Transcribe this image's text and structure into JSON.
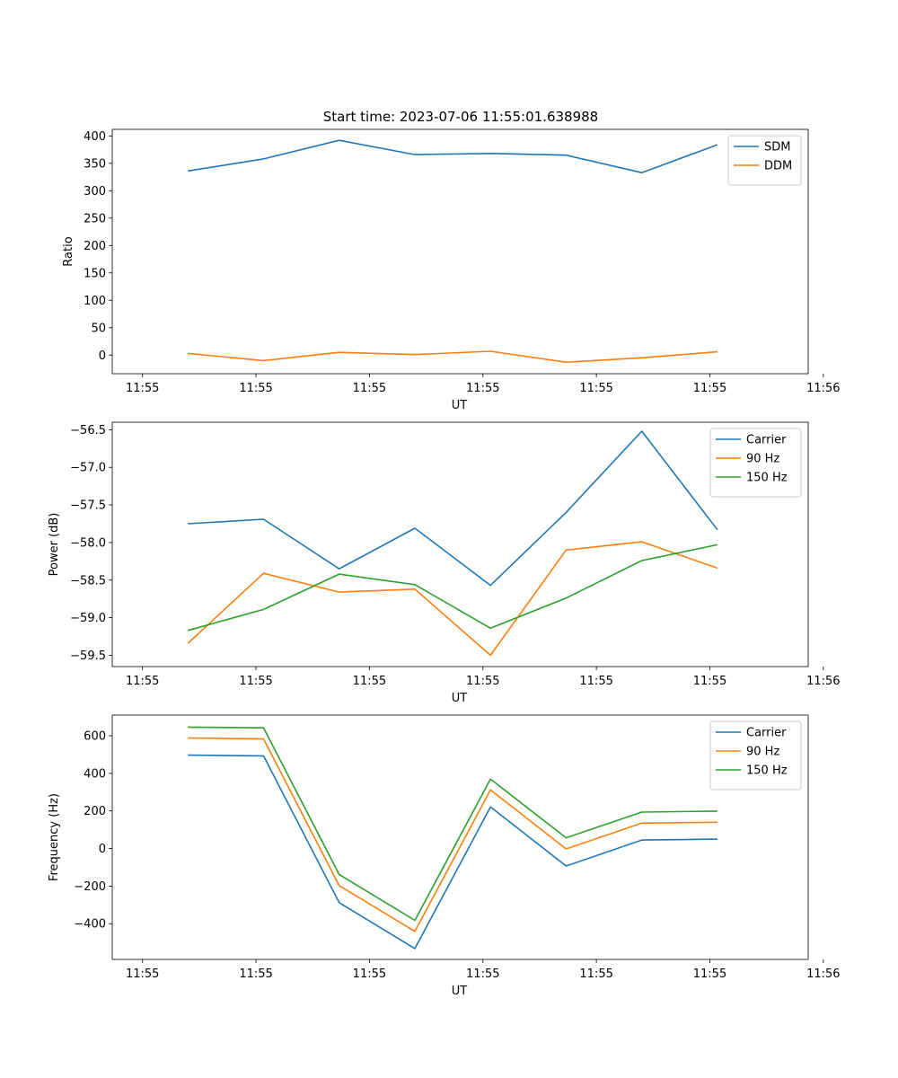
{
  "chart_data": [
    {
      "type": "line",
      "title": "Start time: 2023-07-06 11:55:01.638988",
      "xlabel": "UT",
      "ylabel": "Ratio",
      "xlim": [
        -0.4,
        8.8
      ],
      "ylim": [
        -34,
        412
      ],
      "x": [
        0.6,
        1.6,
        2.6,
        3.6,
        4.6,
        5.6,
        6.6,
        7.6
      ],
      "x_ticks": [
        0,
        1.5,
        3,
        4.5,
        6,
        7.5,
        9
      ],
      "x_tick_labels": [
        "11:55",
        "11:55",
        "11:55",
        "11:55",
        "11:55",
        "11:55",
        "11:56"
      ],
      "y_ticks": [
        0,
        50,
        100,
        150,
        200,
        250,
        300,
        350,
        400
      ],
      "y_tick_labels": [
        "0",
        "50",
        "100",
        "150",
        "200",
        "250",
        "300",
        "350",
        "400"
      ],
      "legend_position": "top-right",
      "series": [
        {
          "name": "SDM",
          "color": "#1f77b4",
          "values": [
            336,
            358,
            392,
            366,
            368,
            365,
            333,
            384
          ]
        },
        {
          "name": "DDM",
          "color": "#ff7f0e",
          "values": [
            3,
            -10,
            5,
            1,
            7,
            -13,
            -5,
            6
          ]
        }
      ]
    },
    {
      "type": "line",
      "title": "",
      "xlabel": "UT",
      "ylabel": "Power (dB)",
      "xlim": [
        -0.4,
        8.8
      ],
      "ylim": [
        -59.65,
        -56.4
      ],
      "x": [
        0.6,
        1.6,
        2.6,
        3.6,
        4.6,
        5.6,
        6.6,
        7.6
      ],
      "x_ticks": [
        0,
        1.5,
        3,
        4.5,
        6,
        7.5,
        9
      ],
      "x_tick_labels": [
        "11:55",
        "11:55",
        "11:55",
        "11:55",
        "11:55",
        "11:55",
        "11:56"
      ],
      "y_ticks": [
        -59.5,
        -59.0,
        -58.5,
        -58.0,
        -57.5,
        -57.0,
        -56.5
      ],
      "y_tick_labels": [
        "−59.5",
        "−59.0",
        "−58.5",
        "−58.0",
        "−57.5",
        "−57.0",
        "−56.5"
      ],
      "legend_position": "top-right",
      "series": [
        {
          "name": "Carrier",
          "color": "#1f77b4",
          "values": [
            -57.75,
            -57.69,
            -58.35,
            -57.81,
            -58.57,
            -57.6,
            -56.52,
            -57.83
          ]
        },
        {
          "name": "90 Hz",
          "color": "#ff7f0e",
          "values": [
            -59.34,
            -58.41,
            -58.66,
            -58.62,
            -59.5,
            -58.1,
            -57.99,
            -58.34
          ]
        },
        {
          "name": "150 Hz",
          "color": "#2ca02c",
          "values": [
            -59.17,
            -58.89,
            -58.42,
            -58.56,
            -59.14,
            -58.74,
            -58.24,
            -58.03
          ]
        }
      ]
    },
    {
      "type": "line",
      "title": "",
      "xlabel": "UT",
      "ylabel": "Frequency (Hz)",
      "xlim": [
        -0.4,
        8.8
      ],
      "ylim": [
        -590,
        710
      ],
      "x": [
        0.6,
        1.6,
        2.6,
        3.6,
        4.6,
        5.6,
        6.6,
        7.6
      ],
      "x_ticks": [
        0,
        1.5,
        3,
        4.5,
        6,
        7.5,
        9
      ],
      "x_tick_labels": [
        "11:55",
        "11:55",
        "11:55",
        "11:55",
        "11:55",
        "11:55",
        "11:56"
      ],
      "y_ticks": [
        -400,
        -200,
        0,
        200,
        400,
        600
      ],
      "y_tick_labels": [
        "−400",
        "−200",
        "0",
        "200",
        "400",
        "600"
      ],
      "legend_position": "top-right",
      "series": [
        {
          "name": "Carrier",
          "color": "#1f77b4",
          "values": [
            497,
            493,
            -288,
            -532,
            221,
            -93,
            45,
            50
          ]
        },
        {
          "name": "90 Hz",
          "color": "#ff7f0e",
          "values": [
            588,
            583,
            -197,
            -441,
            312,
            -2,
            135,
            140
          ]
        },
        {
          "name": "150 Hz",
          "color": "#2ca02c",
          "values": [
            646,
            642,
            -138,
            -382,
            369,
            57,
            194,
            199
          ]
        }
      ]
    }
  ]
}
